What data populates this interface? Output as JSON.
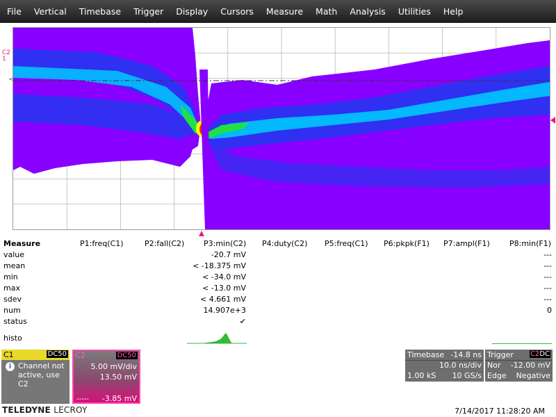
{
  "menu": [
    "File",
    "Vertical",
    "Timebase",
    "Trigger",
    "Display",
    "Cursors",
    "Measure",
    "Math",
    "Analysis",
    "Utilities",
    "Help"
  ],
  "display": {
    "channel_label": "C2",
    "channel_marker": "1",
    "trace_color": "#e0207a",
    "persistence_colors": [
      "#8800ff",
      "#2a33f0",
      "#00c8ff",
      "#22e040",
      "#ffff00",
      "#ff2010"
    ]
  },
  "measure": {
    "title": "Measure",
    "params": [
      "P1:freq(C1)",
      "P2:fall(C2)",
      "P3:min(C2)",
      "P4:duty(C2)",
      "P5:freq(C1)",
      "P6:pkpk(F1)",
      "P7:ampl(F1)",
      "P8:min(F1)"
    ],
    "rows": [
      {
        "label": "value",
        "p3": "-20.7 mV",
        "p8": "---"
      },
      {
        "label": "mean",
        "p3": "< -18.375 mV",
        "p8": "---"
      },
      {
        "label": "min",
        "p3": "< -34.0 mV",
        "p8": "---"
      },
      {
        "label": "max",
        "p3": "< -13.0 mV",
        "p8": "---"
      },
      {
        "label": "sdev",
        "p3": "< 4.661 mV",
        "p8": "---"
      },
      {
        "label": "num",
        "p3": "14.907e+3",
        "p8": "0"
      },
      {
        "label": "status",
        "p3": "✔",
        "p8": ""
      },
      {
        "label": "histo",
        "p3": "",
        "p8": ""
      }
    ]
  },
  "c1": {
    "name": "C1",
    "coupling": "DC50",
    "message": "Channel not active, use C2"
  },
  "c2": {
    "name": "C2",
    "coupling": "DC50",
    "vdiv": "5.00 mV/div",
    "offset": "13.50 mV",
    "marker": "-----",
    "level": "-3.85 mV"
  },
  "timebase": {
    "title": "Timebase",
    "delay": "-14.8 ns",
    "tdiv": "10.0 ns/div",
    "samples": "1.00 kS",
    "rate": "10 GS/s"
  },
  "trigger": {
    "title": "Trigger",
    "source_a": "C2",
    "source_b": "DC",
    "mode": "Nor",
    "level": "-12.00 mV",
    "type": "Edge",
    "slope": "Negative"
  },
  "brand": {
    "bold": "TELEDYNE",
    "light": "LECROY"
  },
  "timestamp": "7/14/2017 11:28:20 AM"
}
